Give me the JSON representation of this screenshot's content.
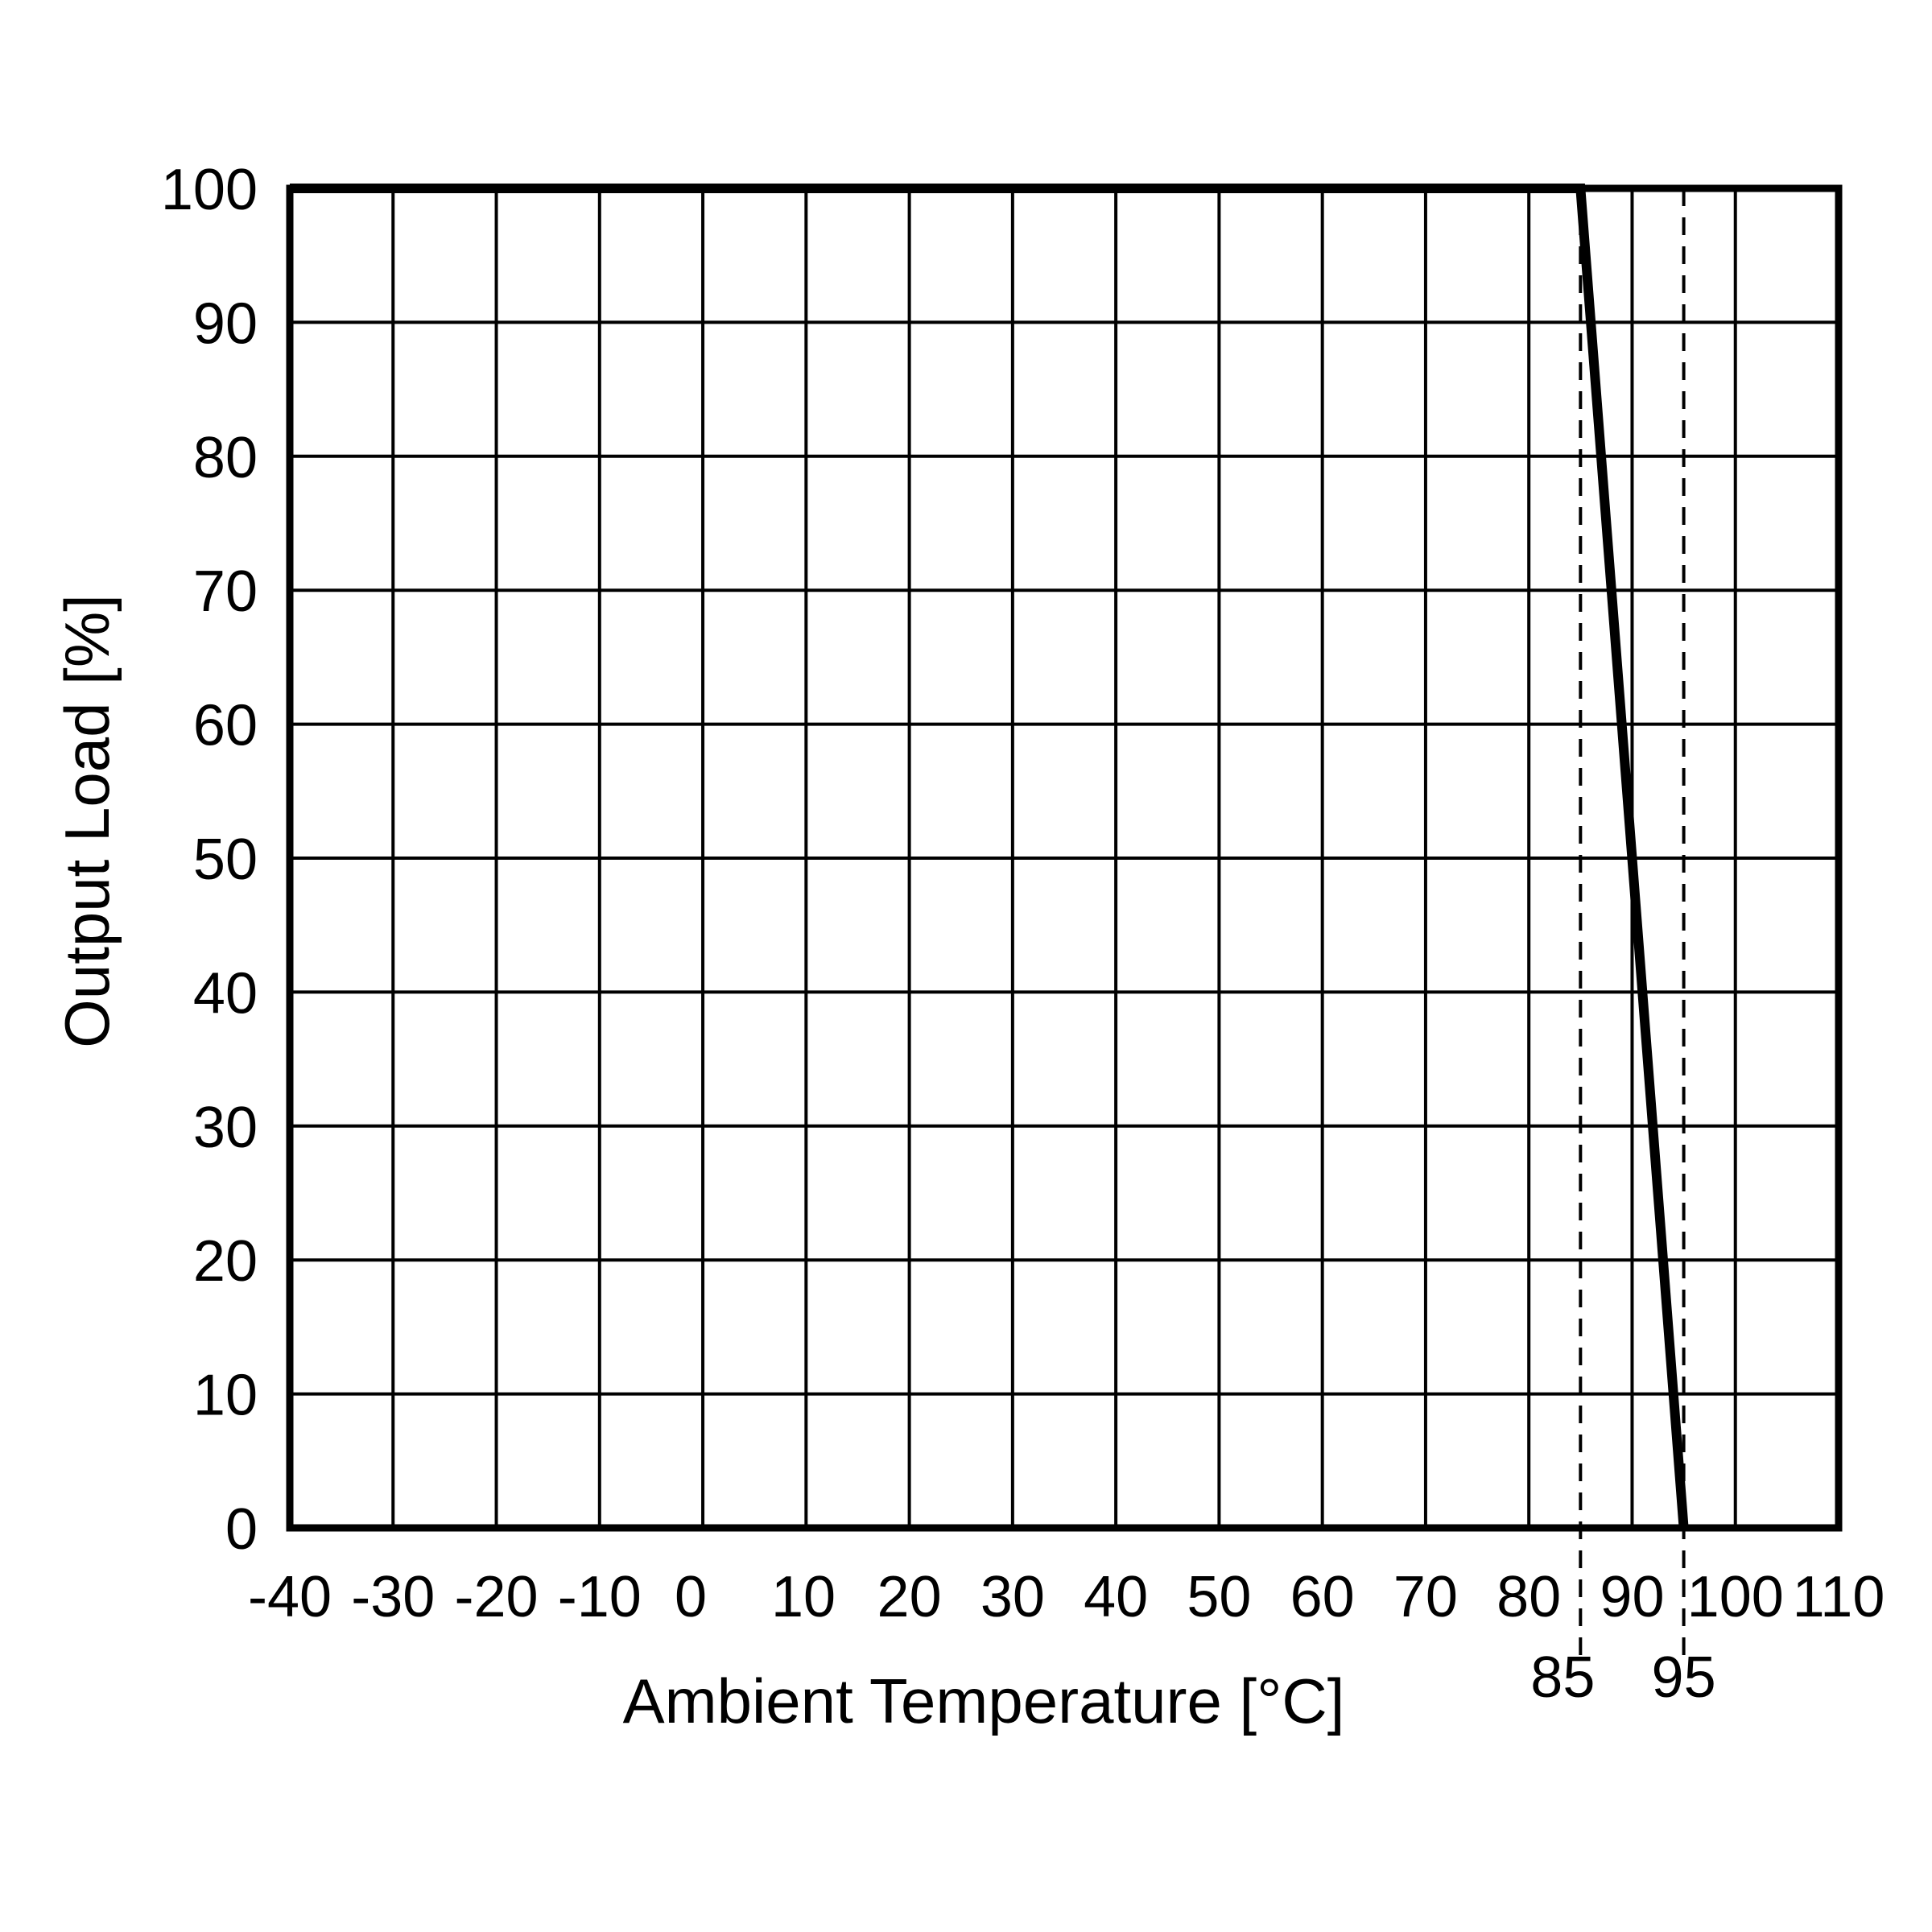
{
  "chart_data": {
    "type": "line",
    "xlabel": "Ambient Temperature [°C]",
    "ylabel": "Output Load [%]",
    "xlim": [
      -40,
      110
    ],
    "ylim": [
      0,
      100
    ],
    "x_ticks": [
      -40,
      -30,
      -20,
      -10,
      0,
      10,
      20,
      30,
      40,
      50,
      60,
      70,
      80,
      90,
      100,
      110
    ],
    "x_tick_labels": [
      "-40",
      "-30",
      "-20",
      "-10",
      "0",
      "10",
      "20",
      "30",
      "40",
      "50",
      "60",
      "70",
      "80",
      "90",
      "100",
      "110"
    ],
    "y_ticks": [
      0,
      10,
      20,
      30,
      40,
      50,
      60,
      70,
      80,
      90,
      100
    ],
    "y_tick_labels": [
      "0",
      "10",
      "20",
      "30",
      "40",
      "50",
      "60",
      "70",
      "80",
      "90",
      "100"
    ],
    "grid": true,
    "series": [
      {
        "x": [
          -40,
          85,
          95
        ],
        "y": [
          100,
          100,
          0
        ]
      }
    ],
    "reference_lines": [
      {
        "x": 85,
        "label": "85",
        "style": "dashed"
      },
      {
        "x": 95,
        "label": "95",
        "style": "dashed"
      }
    ]
  }
}
